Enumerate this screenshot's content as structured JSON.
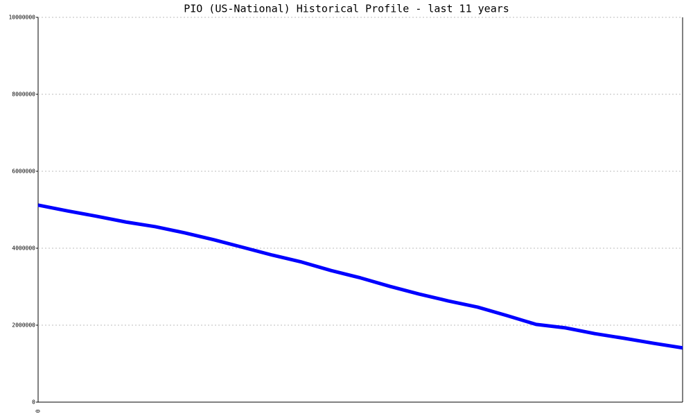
{
  "chart_data": {
    "type": "line",
    "title": "PIO (US-National) Historical Profile - last 11 years",
    "categories": [
      "0",
      null,
      null,
      null,
      null,
      null,
      null,
      null,
      null,
      null,
      null,
      null,
      null,
      null,
      null,
      null,
      null,
      null,
      null,
      null,
      null,
      null,
      null
    ],
    "series": [
      {
        "color": "#0000ff",
        "values": [
          5120000,
          4970000,
          4830000,
          4680000,
          4560000,
          4400000,
          4220000,
          4020000,
          3820000,
          3640000,
          3420000,
          3230000,
          3010000,
          2810000,
          2630000,
          2470000,
          2250000,
          2020000,
          1930000,
          1780000,
          1660000,
          1530000,
          1410000
        ]
      }
    ],
    "ylim": [
      0,
      10000000
    ],
    "yticks": [
      0,
      2000000,
      4000000,
      6000000,
      8000000,
      10000000
    ],
    "grid": true
  }
}
